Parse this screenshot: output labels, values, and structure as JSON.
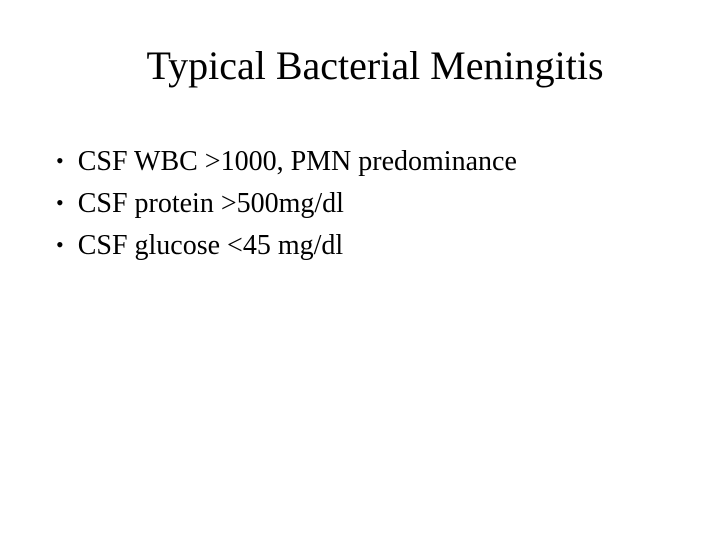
{
  "slide": {
    "title": "Typical Bacterial Meningitis",
    "bullets": [
      "CSF WBC >1000, PMN predominance",
      "CSF protein >500mg/dl",
      "CSF glucose <45 mg/dl"
    ],
    "styling": {
      "background_color": "#ffffff",
      "text_color": "#000000",
      "font_family": "Times New Roman",
      "title_fontsize": 40,
      "body_fontsize": 28,
      "bullet_marker": "•"
    }
  }
}
